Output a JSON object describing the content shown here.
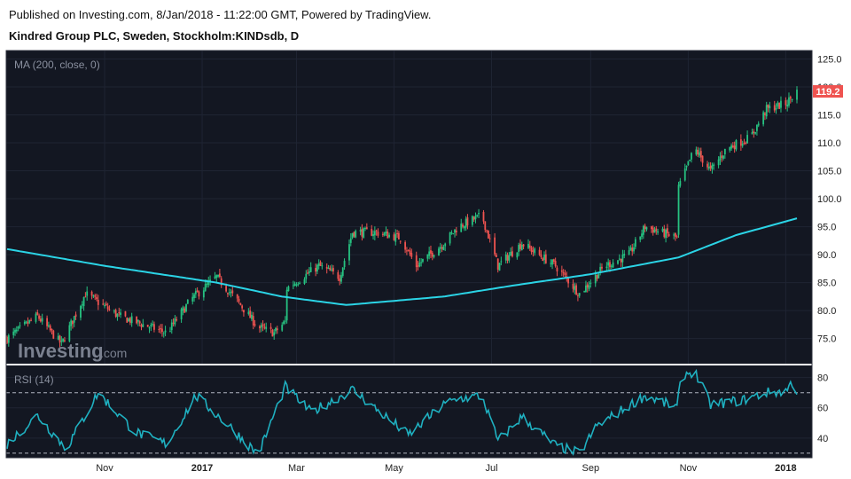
{
  "header": {
    "published": "Published on Investing.com, 8/Jan/2018 - 11:22:00 GMT, Powered by TradingView.",
    "symbol": "Kindred Group PLC, Sweden, Stockholm:KINDsdb, D"
  },
  "watermark": {
    "brand": "Investing",
    "suffix": ".com"
  },
  "colors": {
    "background": "#131722",
    "up": "#26c281",
    "down": "#ef5350",
    "ma": "#2bd4e6",
    "rsi": "#1fb0c0",
    "price_tag": "#ef5350",
    "grid": "#1f2433"
  },
  "chart_data": [
    {
      "type": "candlestick",
      "indicator_label": "MA (200, close, 0)",
      "y_ticks": [
        "125.0",
        "120.0",
        "115.0",
        "110.0",
        "105.0",
        "100.0",
        "95.0",
        "90.0",
        "85.0",
        "80.0",
        "75.0"
      ],
      "ylim": [
        70.5,
        126.5
      ],
      "last_price": "119.2",
      "x_ticks": [
        "Nov",
        "2017",
        "Mar",
        "May",
        "Jul",
        "Sep",
        "Nov",
        "2018"
      ],
      "price_anchors": [
        [
          "2016-09-01",
          75
        ],
        [
          "2016-09-20",
          79
        ],
        [
          "2016-10-05",
          74
        ],
        [
          "2016-10-20",
          83
        ],
        [
          "2016-11-10",
          79
        ],
        [
          "2016-12-10",
          76
        ],
        [
          "2016-12-25",
          82
        ],
        [
          "2017-01-10",
          86
        ],
        [
          "2017-01-25",
          81
        ],
        [
          "2017-02-05",
          77
        ],
        [
          "2017-02-15",
          76
        ],
        [
          "2017-02-22",
          78
        ],
        [
          "2017-02-23",
          84
        ],
        [
          "2017-03-15",
          88
        ],
        [
          "2017-03-28",
          86
        ],
        [
          "2017-04-05",
          94
        ],
        [
          "2017-04-20",
          94
        ],
        [
          "2017-05-05",
          93
        ],
        [
          "2017-05-15",
          88
        ],
        [
          "2017-06-01",
          92
        ],
        [
          "2017-06-10",
          95
        ],
        [
          "2017-06-25",
          97
        ],
        [
          "2017-07-05",
          88
        ],
        [
          "2017-07-20",
          92
        ],
        [
          "2017-08-10",
          88
        ],
        [
          "2017-08-25",
          83
        ],
        [
          "2017-09-10",
          88
        ],
        [
          "2017-09-25",
          90
        ],
        [
          "2017-10-05",
          95
        ],
        [
          "2017-10-25",
          93
        ],
        [
          "2017-10-26",
          102
        ],
        [
          "2017-11-05",
          109
        ],
        [
          "2017-11-15",
          105
        ],
        [
          "2017-11-25",
          109
        ],
        [
          "2017-12-10",
          111
        ],
        [
          "2017-12-20",
          116
        ],
        [
          "2018-01-01",
          117
        ],
        [
          "2018-01-08",
          119.2
        ]
      ],
      "ma_200": [
        [
          "2016-09-01",
          91
        ],
        [
          "2016-11-01",
          88
        ],
        [
          "2017-01-10",
          85
        ],
        [
          "2017-02-20",
          82.5
        ],
        [
          "2017-04-01",
          81
        ],
        [
          "2017-06-01",
          82.5
        ],
        [
          "2017-07-15",
          84.5
        ],
        [
          "2017-09-01",
          86.5
        ],
        [
          "2017-10-26",
          89.5
        ],
        [
          "2017-12-01",
          93.5
        ],
        [
          "2018-01-08",
          96.5
        ]
      ]
    },
    {
      "type": "line",
      "indicator_label": "RSI (14)",
      "y_ticks": [
        "80",
        "60",
        "40"
      ],
      "ylim": [
        27,
        88
      ],
      "reference_lines": [
        70,
        30
      ],
      "rsi_anchors": [
        [
          "2016-09-01",
          36
        ],
        [
          "2016-09-20",
          55
        ],
        [
          "2016-10-08",
          33
        ],
        [
          "2016-10-28",
          70
        ],
        [
          "2016-11-20",
          44
        ],
        [
          "2016-12-10",
          36
        ],
        [
          "2016-12-28",
          68
        ],
        [
          "2017-01-20",
          46
        ],
        [
          "2017-02-05",
          29
        ],
        [
          "2017-02-22",
          74
        ],
        [
          "2017-03-10",
          57
        ],
        [
          "2017-04-05",
          72
        ],
        [
          "2017-04-20",
          59
        ],
        [
          "2017-05-10",
          42
        ],
        [
          "2017-06-01",
          62
        ],
        [
          "2017-06-10",
          66
        ],
        [
          "2017-06-25",
          68
        ],
        [
          "2017-07-05",
          38
        ],
        [
          "2017-07-20",
          54
        ],
        [
          "2017-08-10",
          35
        ],
        [
          "2017-08-25",
          30
        ],
        [
          "2017-09-05",
          48
        ],
        [
          "2017-09-20",
          58
        ],
        [
          "2017-10-05",
          68
        ],
        [
          "2017-10-25",
          60
        ],
        [
          "2017-10-28",
          82
        ],
        [
          "2017-11-05",
          84
        ],
        [
          "2017-11-15",
          62
        ],
        [
          "2017-12-05",
          65
        ],
        [
          "2017-12-20",
          70
        ],
        [
          "2018-01-01",
          71
        ],
        [
          "2018-01-05",
          77
        ],
        [
          "2018-01-08",
          70
        ]
      ]
    }
  ]
}
